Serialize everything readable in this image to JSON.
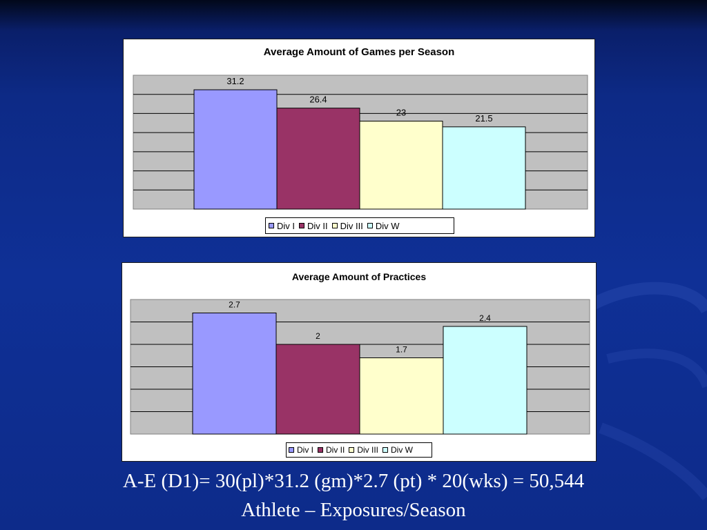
{
  "colors": {
    "div_i": "#9999ff",
    "div_ii": "#993366",
    "div_iii": "#ffffcc",
    "div_w": "#ccffff",
    "plot_area": "#c0c0c0",
    "gridline": "#000000"
  },
  "chart_data": [
    {
      "type": "bar",
      "title": "Average Amount of Games per Season",
      "categories": [
        ""
      ],
      "series": [
        {
          "name": "Div I",
          "values": [
            31.2
          ]
        },
        {
          "name": "Div II",
          "values": [
            26.4
          ]
        },
        {
          "name": "Div III",
          "values": [
            23
          ]
        },
        {
          "name": "Div W",
          "values": [
            21.5
          ]
        }
      ],
      "data_labels": [
        "31.2",
        "26.4",
        "23",
        "21.5"
      ],
      "ylim": [
        0,
        35
      ],
      "grid": true,
      "legend": "bottom"
    },
    {
      "type": "bar",
      "title": "Average Amount of Practices",
      "categories": [
        ""
      ],
      "series": [
        {
          "name": "Div I",
          "values": [
            2.7
          ]
        },
        {
          "name": "Div II",
          "values": [
            2
          ]
        },
        {
          "name": "Div III",
          "values": [
            1.7
          ]
        },
        {
          "name": "Div W",
          "values": [
            2.4
          ]
        }
      ],
      "data_labels": [
        "2.7",
        "2",
        "1.7",
        "2.4"
      ],
      "ylim": [
        0,
        3
      ],
      "grid": true,
      "legend": "bottom"
    }
  ],
  "caption": {
    "line1": "A-E (D1)= 30(pl)*31.2 (gm)*2.7 (pt) * 20(wks) = 50,544",
    "line2": "Athlete – Exposures/Season"
  }
}
